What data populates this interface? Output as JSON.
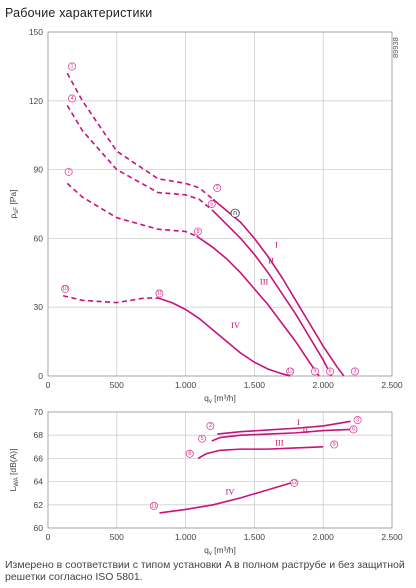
{
  "title": "Рабочие характеристики",
  "note": "Измерено в соответствии с типом установки A в полном раструбе и без защитной решет­ки согласно ISO 5801.",
  "ref_code": "89938",
  "curve_color": "#c8127d",
  "chart_data": [
    {
      "type": "line",
      "ylabel_main": "p",
      "ylabel_sub": "sF",
      "ylabel_unit": "[Pa]",
      "xlabel_main": "q",
      "xlabel_sub": "v",
      "xlabel_unit": "[m³/h]",
      "xlim": [
        0,
        2500
      ],
      "ylim": [
        0,
        150
      ],
      "x_ticks": [
        0,
        500,
        1000,
        1500,
        2000,
        2500
      ],
      "x_tick_labels": [
        "0",
        "500",
        "1.000",
        "1.500",
        "2.000",
        "2.500"
      ],
      "y_ticks": [
        0,
        30,
        60,
        90,
        120,
        150
      ],
      "y_tick_labels": [
        "0",
        "30",
        "60",
        "90",
        "120",
        "150"
      ],
      "grid": true,
      "series": [
        {
          "name": "I",
          "dashed_until": 1200,
          "x": [
            140,
            250,
            500,
            800,
            1000,
            1100,
            1200,
            1300,
            1400,
            1500,
            1600,
            1700,
            1800,
            1900,
            2000,
            2100,
            2150
          ],
          "y": [
            132,
            120,
            98,
            86,
            84,
            82,
            77,
            72,
            67,
            60,
            52,
            43,
            33,
            23,
            13,
            4,
            0
          ]
        },
        {
          "name": "II",
          "dashed_until": 1200,
          "x": [
            140,
            250,
            500,
            800,
            1000,
            1100,
            1200,
            1300,
            1400,
            1500,
            1600,
            1700,
            1800,
            1900,
            2000,
            2060
          ],
          "y": [
            118,
            107,
            90,
            80,
            79,
            77,
            72,
            66,
            60,
            53,
            45,
            36,
            27,
            17,
            7,
            0
          ]
        },
        {
          "name": "III",
          "dashed_until": 1080,
          "x": [
            140,
            250,
            500,
            800,
            1000,
            1080,
            1200,
            1300,
            1400,
            1500,
            1600,
            1700,
            1800,
            1900,
            1970
          ],
          "y": [
            84,
            78,
            69,
            64,
            63,
            61,
            56,
            51,
            45,
            38,
            31,
            23,
            15,
            6,
            0
          ]
        },
        {
          "name": "IV",
          "dashed_until": 800,
          "x": [
            110,
            250,
            500,
            700,
            800,
            900,
            1000,
            1100,
            1200,
            1300,
            1400,
            1500,
            1600,
            1700,
            1760
          ],
          "y": [
            35,
            33,
            32,
            34,
            34,
            32,
            29,
            25,
            20,
            15,
            10,
            6,
            3,
            1,
            0
          ]
        }
      ],
      "markers": [
        {
          "label": "1",
          "x": 175,
          "y": 135
        },
        {
          "label": "4",
          "x": 175,
          "y": 121
        },
        {
          "label": "7",
          "x": 150,
          "y": 89
        },
        {
          "label": "10",
          "x": 125,
          "y": 38
        },
        {
          "label": "2",
          "x": 1230,
          "y": 82
        },
        {
          "label": "5",
          "x": 1190,
          "y": 75
        },
        {
          "label": "8",
          "x": 1090,
          "y": 63
        },
        {
          "label": "11",
          "x": 810,
          "y": 36
        },
        {
          "label": "n",
          "x": 1360,
          "y": 71,
          "style": "black"
        },
        {
          "label": "3",
          "x": 2230,
          "y": 2
        },
        {
          "label": "6",
          "x": 2050,
          "y": 2
        },
        {
          "label": "9",
          "x": 1940,
          "y": 2
        },
        {
          "label": "12",
          "x": 1760,
          "y": 2
        }
      ],
      "roman_labels": [
        {
          "label": "I",
          "x": 1650,
          "y": 56
        },
        {
          "label": "II",
          "x": 1600,
          "y": 49
        },
        {
          "label": "III",
          "x": 1540,
          "y": 40
        },
        {
          "label": "IV",
          "x": 1330,
          "y": 21
        }
      ]
    },
    {
      "type": "line",
      "ylabel_main": "L",
      "ylabel_sub": "WA",
      "ylabel_unit": "[dB(A)]",
      "xlabel_main": "q",
      "xlabel_sub": "v",
      "xlabel_unit": "[m³/h]",
      "xlim": [
        0,
        2500
      ],
      "ylim": [
        60,
        70
      ],
      "x_ticks": [
        0,
        500,
        1000,
        1500,
        2000,
        2500
      ],
      "x_tick_labels": [
        "0",
        "500",
        "1.000",
        "1.500",
        "2.000",
        "2.500"
      ],
      "y_ticks": [
        60,
        62,
        64,
        66,
        68,
        70
      ],
      "y_tick_labels": [
        "60",
        "62",
        "64",
        "66",
        "68",
        "70"
      ],
      "grid": true,
      "series": [
        {
          "name": "I",
          "x": [
            1230,
            1400,
            1600,
            1800,
            2000,
            2200
          ],
          "y": [
            68.1,
            68.3,
            68.45,
            68.6,
            68.8,
            69.2
          ]
        },
        {
          "name": "II",
          "x": [
            1190,
            1250,
            1400,
            1600,
            1800,
            2000,
            2200
          ],
          "y": [
            67.5,
            67.8,
            68.0,
            68.1,
            68.2,
            68.4,
            68.5
          ]
        },
        {
          "name": "III",
          "x": [
            1090,
            1150,
            1250,
            1400,
            1600,
            1800,
            2000
          ],
          "y": [
            66.0,
            66.4,
            66.7,
            66.8,
            66.8,
            66.9,
            67.0
          ]
        },
        {
          "name": "IV",
          "x": [
            810,
            1000,
            1200,
            1400,
            1600,
            1770
          ],
          "y": [
            61.3,
            61.6,
            62.0,
            62.6,
            63.3,
            63.9
          ]
        }
      ],
      "markers": [
        {
          "label": "2",
          "x": 1180,
          "y": 68.8
        },
        {
          "label": "5",
          "x": 1120,
          "y": 67.7
        },
        {
          "label": "8",
          "x": 1030,
          "y": 66.4
        },
        {
          "label": "11",
          "x": 770,
          "y": 61.9
        },
        {
          "label": "3",
          "x": 2250,
          "y": 69.3
        },
        {
          "label": "6",
          "x": 2220,
          "y": 68.5
        },
        {
          "label": "9",
          "x": 2080,
          "y": 67.2
        },
        {
          "label": "12",
          "x": 1790,
          "y": 63.9
        }
      ],
      "roman_labels": [
        {
          "label": "I",
          "x": 1810,
          "y": 68.9
        },
        {
          "label": "II",
          "x": 1850,
          "y": 68.2
        },
        {
          "label": "III",
          "x": 1650,
          "y": 67.1
        },
        {
          "label": "IV",
          "x": 1290,
          "y": 62.9
        }
      ]
    }
  ]
}
